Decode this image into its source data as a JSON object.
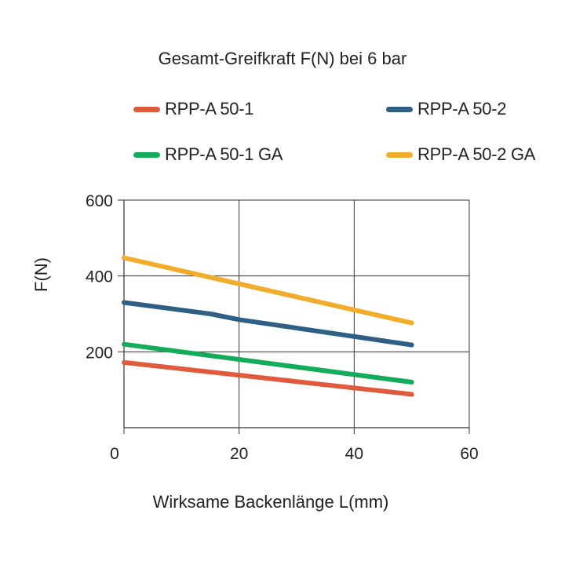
{
  "chart_data": {
    "type": "line",
    "title": "Gesamt-Greifkraft F(N) bei 6 bar",
    "xlabel": "Wirksame Backenlänge L(mm)",
    "ylabel": "F(N)",
    "xlim": [
      0,
      60
    ],
    "ylim": [
      0,
      600
    ],
    "xticks": [
      "0",
      "20",
      "40",
      "60"
    ],
    "yticks": [
      "200",
      "400",
      "600"
    ],
    "grid": true,
    "legend_position": "top",
    "series": [
      {
        "name": "RPP-A 50-1",
        "color": "#e05a3c",
        "x": [
          0,
          50
        ],
        "y": [
          172,
          88
        ]
      },
      {
        "name": "RPP-A 50-2",
        "color": "#2f5f84",
        "x": [
          0,
          15,
          20,
          50
        ],
        "y": [
          330,
          300,
          285,
          218
        ]
      },
      {
        "name": "RPP-A 50-1 GA",
        "color": "#12ac5a",
        "x": [
          0,
          50
        ],
        "y": [
          220,
          120
        ]
      },
      {
        "name": "RPP-A 50-2 GA",
        "color": "#f3ac2a",
        "x": [
          0,
          50
        ],
        "y": [
          448,
          276
        ]
      }
    ]
  }
}
